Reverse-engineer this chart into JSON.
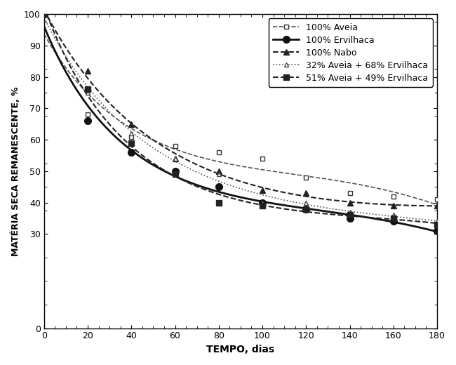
{
  "title": "",
  "xlabel": "TEMPO, dias",
  "ylabel": "MATÉRIA SECA REMANESCENTE, %",
  "xlim": [
    0,
    180
  ],
  "ylim": [
    0,
    100
  ],
  "xticks": [
    0,
    20,
    40,
    60,
    80,
    100,
    120,
    140,
    160,
    180
  ],
  "yticks": [
    0,
    30,
    40,
    50,
    60,
    70,
    80,
    90,
    100
  ],
  "series": [
    {
      "label": "100% Aveia",
      "x": [
        0,
        20,
        40,
        60,
        80,
        100,
        120,
        140,
        160,
        180
      ],
      "y": [
        100,
        68,
        61,
        58,
        56,
        54,
        48,
        43,
        42,
        41
      ],
      "linestyle": "--",
      "linewidth": 1.2,
      "color": "#555555",
      "marker": "s",
      "markersize": 5,
      "markerfacecolor": "white",
      "markeredgecolor": "#333333"
    },
    {
      "label": "100% Ervilhaca",
      "x": [
        0,
        20,
        40,
        60,
        80,
        100,
        120,
        140,
        160,
        180
      ],
      "y": [
        100,
        66,
        56,
        50,
        45,
        40,
        38,
        35,
        34,
        31
      ],
      "linestyle": "-",
      "linewidth": 2.0,
      "color": "#111111",
      "marker": "o",
      "markersize": 7,
      "markerfacecolor": "#111111",
      "markeredgecolor": "#111111"
    },
    {
      "label": "100% Nabo",
      "x": [
        0,
        20,
        40,
        60,
        80,
        100,
        120,
        140,
        160,
        180
      ],
      "y": [
        100,
        82,
        65,
        54,
        50,
        44,
        43,
        40,
        39,
        39
      ],
      "linestyle": "--",
      "linewidth": 1.5,
      "color": "#222222",
      "marker": "^",
      "markersize": 6,
      "markerfacecolor": "#222222",
      "markeredgecolor": "#222222"
    },
    {
      "label": "32% Aveia + 68% Ervilhaca",
      "x": [
        0,
        20,
        40,
        60,
        80,
        100,
        120,
        140,
        160,
        180
      ],
      "y": [
        100,
        75,
        62,
        54,
        49,
        40,
        40,
        37,
        36,
        34
      ],
      "linestyle": ":",
      "linewidth": 1.2,
      "color": "#555555",
      "marker": "^",
      "markersize": 5,
      "markerfacecolor": "white",
      "markeredgecolor": "#444444"
    },
    {
      "label": "51% Aveia + 49% Ervilhaca",
      "x": [
        0,
        20,
        40,
        60,
        80,
        100,
        120,
        140,
        160,
        180
      ],
      "y": [
        100,
        76,
        59,
        49,
        40,
        39,
        38,
        36,
        35,
        33
      ],
      "linestyle": "--",
      "linewidth": 1.5,
      "color": "#222222",
      "marker": "s",
      "markersize": 6,
      "markerfacecolor": "#222222",
      "markeredgecolor": "#222222"
    }
  ],
  "legend_loc": "upper right",
  "legend_fontsize": 9,
  "figsize": [
    6.5,
    5.2
  ],
  "dpi": 100
}
